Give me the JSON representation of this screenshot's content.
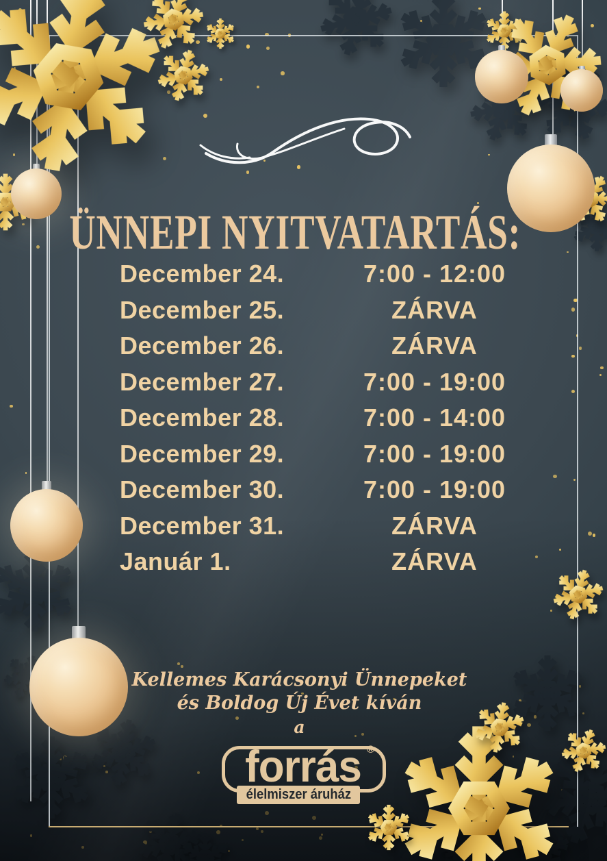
{
  "poster": {
    "title": "ÜNNEPI NYITVATARTÁS:",
    "schedule": [
      {
        "date": "December 24.",
        "hours": "7:00 - 12:00"
      },
      {
        "date": "December 25.",
        "hours": "ZÁRVA"
      },
      {
        "date": "December 26.",
        "hours": "ZÁRVA"
      },
      {
        "date": "December 27.",
        "hours": "7:00 - 19:00"
      },
      {
        "date": "December 28.",
        "hours": "7:00 - 14:00"
      },
      {
        "date": "December 29.",
        "hours": "7:00 - 19:00"
      },
      {
        "date": "December 30.",
        "hours": "7:00 - 19:00"
      },
      {
        "date": "December 31.",
        "hours": "ZÁRVA"
      },
      {
        "date": "Január 1.",
        "hours": "ZÁRVA"
      }
    ],
    "greeting": {
      "line1": "Kellemes Karácsonyi Ünnepeket",
      "line2": "és Boldog Új Évet kíván",
      "line3": "a"
    },
    "logo": {
      "brand": "forrás",
      "registered": "®",
      "tagline": "élelmiszer áruház"
    },
    "colors": {
      "background": "#3b474f",
      "background_dark": "#161b20",
      "text_cream": "#f0d3a4",
      "title_cream": "#ecca9f",
      "gold": "#e9c463",
      "gold_deep": "#a8731d",
      "dark_flake": "#27323b",
      "frame_silver": "#dfe4e7",
      "frame_gold": "#c7ab72",
      "logo_cream": "#e2c79e",
      "logo_text_dark": "#23282d",
      "swirl_white": "#ffffff"
    }
  }
}
